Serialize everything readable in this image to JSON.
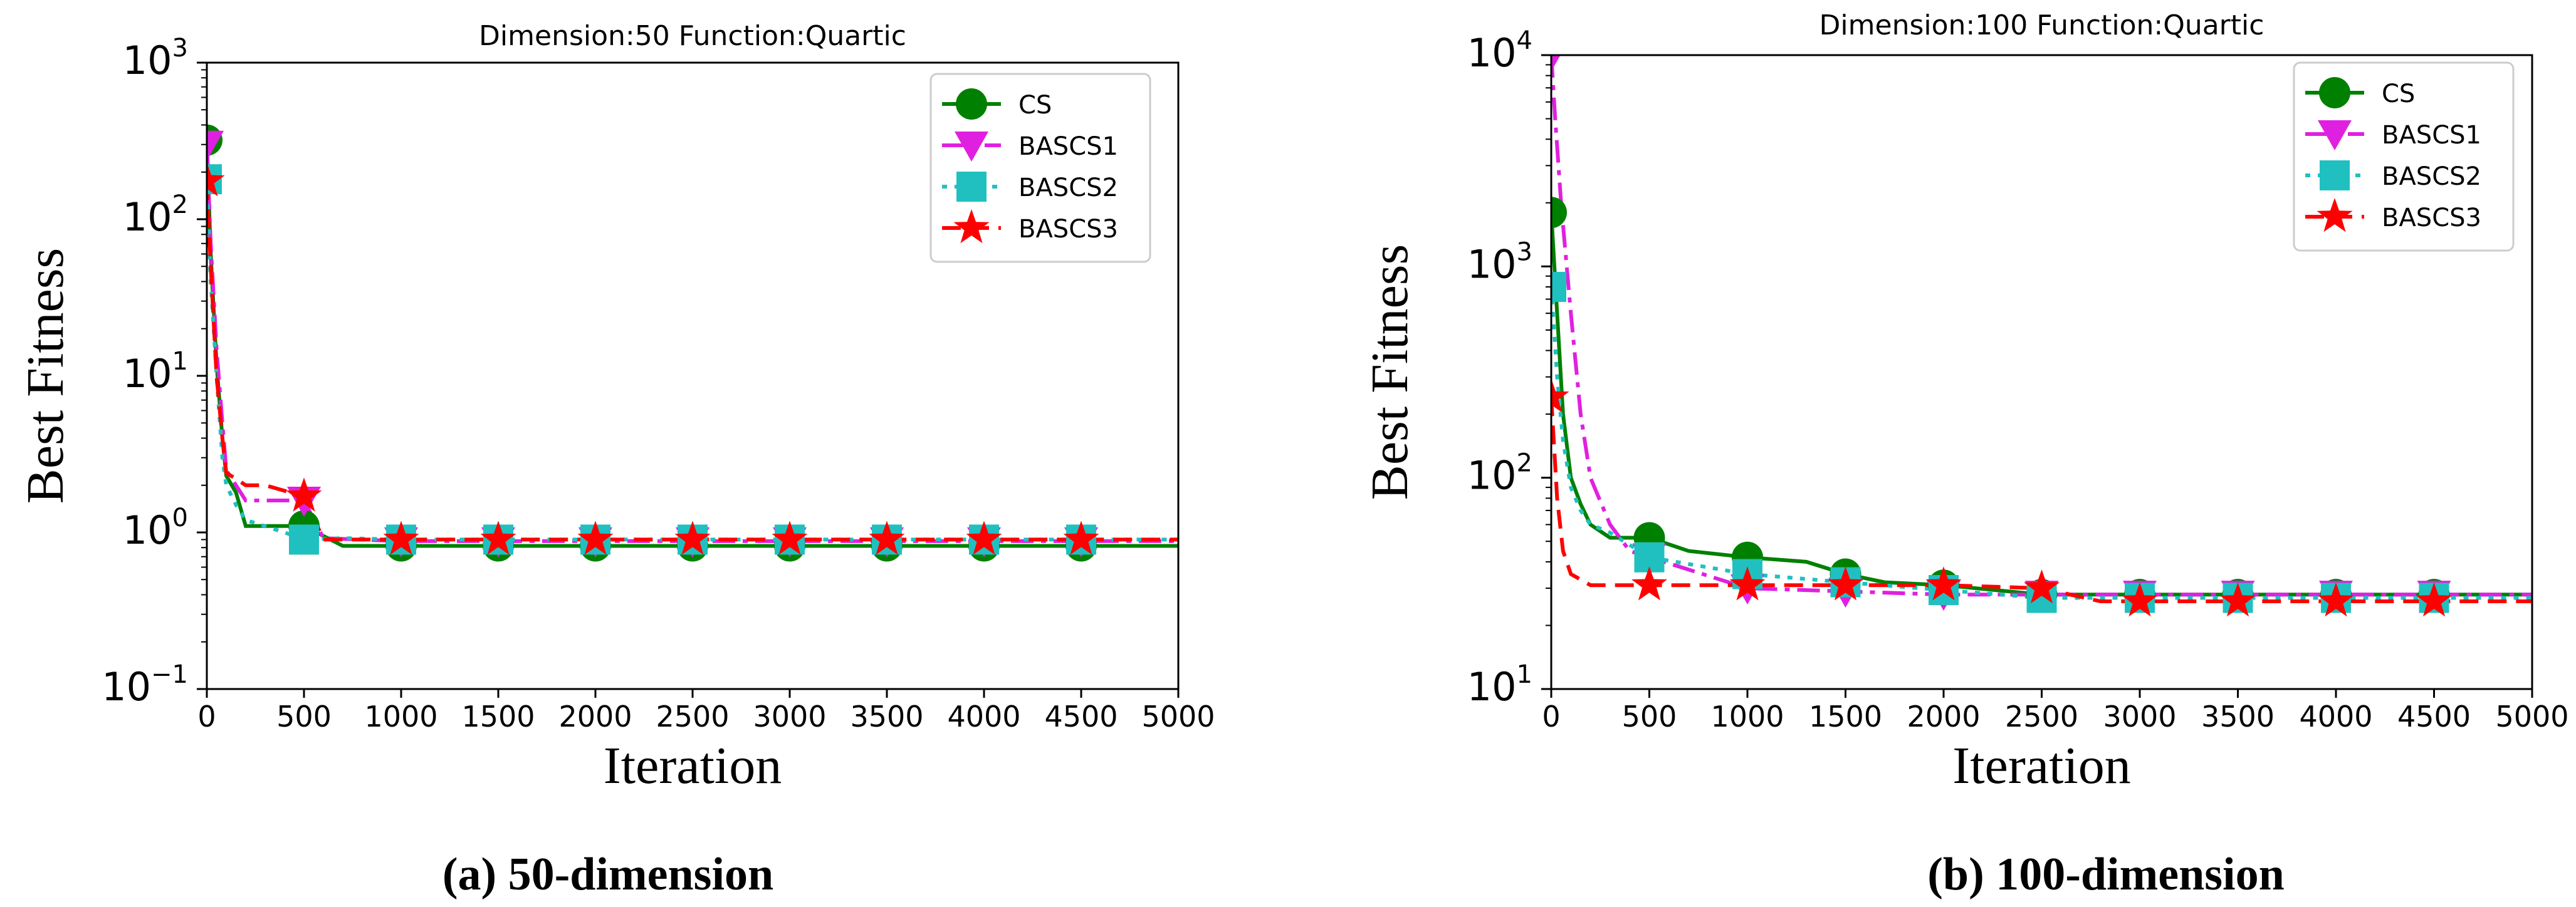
{
  "chart_data": [
    {
      "type": "line",
      "panel_label": "(a)",
      "caption": "50-dimension",
      "title": "Dimension:50  Function:Quartic",
      "xlabel": "Iteration",
      "ylabel": "Best Fitness",
      "xlim": [
        0,
        5000
      ],
      "ylim": [
        0.1,
        1000
      ],
      "yscale": "log",
      "xticks": [
        0,
        500,
        1000,
        1500,
        2000,
        2500,
        3000,
        3500,
        4000,
        4500,
        5000
      ],
      "yticks": [
        {
          "value": 0.1,
          "base": "10",
          "exp": "−1"
        },
        {
          "value": 1,
          "base": "10",
          "exp": "0"
        },
        {
          "value": 10,
          "base": "10",
          "exp": "1"
        },
        {
          "value": 100,
          "base": "10",
          "exp": "2"
        },
        {
          "value": 1000,
          "base": "10",
          "exp": "3"
        }
      ],
      "grid": false,
      "legend_position": "top-right",
      "series": [
        {
          "name": "CS",
          "color": "#008000",
          "dash": "solid",
          "marker": "circle",
          "x": [
            0,
            20,
            50,
            80,
            100,
            150,
            200,
            500,
            700,
            1000,
            5000
          ],
          "y": [
            320,
            60,
            12,
            4,
            2.3,
            1.8,
            1.1,
            1.1,
            0.82,
            0.82,
            0.82
          ]
        },
        {
          "name": "BASCS1",
          "color": "#e020e0",
          "dash": "dashdot",
          "marker": "triangle-down",
          "x": [
            0,
            20,
            50,
            80,
            100,
            150,
            200,
            500,
            600,
            1000,
            5000
          ],
          "y": [
            300,
            70,
            15,
            5,
            2.5,
            2.0,
            1.6,
            1.6,
            0.92,
            0.88,
            0.88
          ]
        },
        {
          "name": "BASCS2",
          "color": "#20c0c0",
          "dash": "dotted",
          "marker": "square",
          "x": [
            0,
            20,
            50,
            80,
            100,
            150,
            200,
            400,
            500,
            700,
            1000,
            5000
          ],
          "y": [
            180,
            40,
            10,
            3,
            2.0,
            1.5,
            1.2,
            1.0,
            0.9,
            0.92,
            0.9,
            0.9
          ]
        },
        {
          "name": "BASCS3",
          "color": "#ff0000",
          "dash": "dashed",
          "marker": "star",
          "x": [
            0,
            20,
            50,
            80,
            100,
            150,
            200,
            300,
            500,
            600,
            1000,
            5000
          ],
          "y": [
            175,
            50,
            10,
            4,
            2.4,
            2.2,
            2.0,
            2.0,
            1.7,
            0.9,
            0.9,
            0.9
          ]
        }
      ]
    },
    {
      "type": "line",
      "panel_label": "(b)",
      "caption": "100-dimension",
      "title": "Dimension:100  Function:Quartic",
      "xlabel": "Iteration",
      "ylabel": "Best Fitness",
      "xlim": [
        0,
        5000
      ],
      "ylim": [
        10,
        10000
      ],
      "yscale": "log",
      "xticks": [
        0,
        500,
        1000,
        1500,
        2000,
        2500,
        3000,
        3500,
        4000,
        4500,
        5000
      ],
      "yticks": [
        {
          "value": 10,
          "base": "10",
          "exp": "1"
        },
        {
          "value": 100,
          "base": "10",
          "exp": "2"
        },
        {
          "value": 1000,
          "base": "10",
          "exp": "3"
        },
        {
          "value": 10000,
          "base": "10",
          "exp": "4"
        }
      ],
      "grid": false,
      "legend_position": "top-right",
      "series": [
        {
          "name": "CS",
          "color": "#008000",
          "dash": "solid",
          "marker": "circle",
          "x": [
            0,
            30,
            60,
            100,
            150,
            200,
            300,
            500,
            700,
            1000,
            1300,
            1500,
            1700,
            2000,
            2500,
            5000
          ],
          "y": [
            1800,
            600,
            200,
            100,
            75,
            60,
            52,
            52,
            45,
            42,
            40,
            35,
            32,
            31,
            28,
            28
          ]
        },
        {
          "name": "BASCS1",
          "color": "#e020e0",
          "dash": "dashdot",
          "marker": "triangle-down",
          "x": [
            0,
            20,
            50,
            100,
            150,
            200,
            300,
            400,
            1000,
            2000,
            5000
          ],
          "y": [
            10000,
            5000,
            2000,
            600,
            200,
            100,
            60,
            45,
            30,
            28,
            28
          ]
        },
        {
          "name": "BASCS2",
          "color": "#20c0c0",
          "dash": "dotted",
          "marker": "square",
          "x": [
            0,
            30,
            60,
            100,
            150,
            200,
            300,
            500,
            1000,
            1500,
            2500,
            5000
          ],
          "y": [
            800,
            300,
            150,
            90,
            70,
            60,
            55,
            42,
            35,
            32,
            27,
            27
          ]
        },
        {
          "name": "BASCS3",
          "color": "#ff0000",
          "dash": "dashed",
          "marker": "star",
          "x": [
            0,
            30,
            60,
            100,
            200,
            1000,
            2000,
            2500,
            2800,
            5000
          ],
          "y": [
            240,
            80,
            45,
            35,
            31,
            31,
            31,
            30,
            26,
            26
          ]
        }
      ]
    }
  ]
}
